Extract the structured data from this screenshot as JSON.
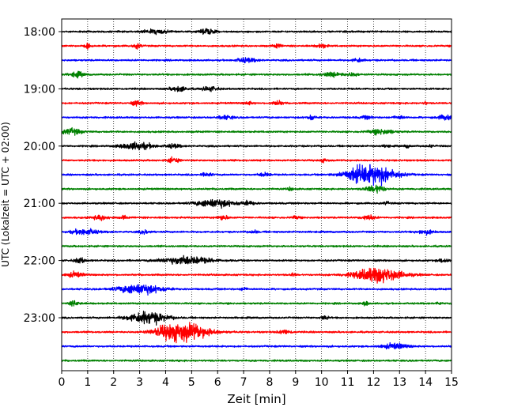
{
  "chart_data": {
    "type": "line",
    "title": "",
    "xlabel": "Zeit  [min]",
    "ylabel": "UTC (Lokalzeit = UTC + 02:00)",
    "xlim": [
      0,
      15
    ],
    "x_ticks": [
      "0",
      "1",
      "2",
      "3",
      "4",
      "5",
      "6",
      "7",
      "8",
      "9",
      "10",
      "11",
      "12",
      "13",
      "14",
      "15"
    ],
    "y_ticks": [
      {
        "label": "18:00",
        "trace": 0
      },
      {
        "label": "19:00",
        "trace": 4
      },
      {
        "label": "20:00",
        "trace": 8
      },
      {
        "label": "21:00",
        "trace": 12
      },
      {
        "label": "22:00",
        "trace": 16
      },
      {
        "label": "23:00",
        "trace": 20
      }
    ],
    "grid": "vertical dotted",
    "colors": [
      "#000000",
      "#ff0000",
      "#0000ff",
      "#008000"
    ],
    "traces": [
      {
        "start": "18:00",
        "color": "#000000",
        "events": [
          [
            3.6,
            0.8,
            0.45
          ],
          [
            5.6,
            1.2,
            0.25
          ]
        ]
      },
      {
        "start": "18:15",
        "color": "#ff0000",
        "events": [
          [
            1.0,
            0.9,
            0.1
          ],
          [
            2.9,
            0.9,
            0.15
          ],
          [
            8.3,
            0.7,
            0.15
          ],
          [
            10.0,
            0.8,
            0.2
          ]
        ]
      },
      {
        "start": "18:30",
        "color": "#0000ff",
        "events": [
          [
            7.1,
            0.9,
            0.35
          ],
          [
            11.4,
            0.8,
            0.2
          ]
        ]
      },
      {
        "start": "18:45",
        "color": "#008000",
        "events": [
          [
            0.6,
            1.0,
            0.25
          ],
          [
            10.4,
            0.8,
            0.4
          ],
          [
            11.2,
            0.7,
            0.2
          ]
        ]
      },
      {
        "start": "19:00",
        "color": "#000000",
        "events": [
          [
            4.5,
            1.0,
            0.3
          ],
          [
            5.7,
            0.8,
            0.3
          ]
        ]
      },
      {
        "start": "19:15",
        "color": "#ff0000",
        "events": [
          [
            2.9,
            0.9,
            0.2
          ],
          [
            7.2,
            0.6,
            0.15
          ],
          [
            8.3,
            0.8,
            0.2
          ],
          [
            14.0,
            0.5,
            0.08
          ]
        ]
      },
      {
        "start": "19:30",
        "color": "#0000ff",
        "events": [
          [
            6.3,
            0.7,
            0.3
          ],
          [
            9.6,
            0.8,
            0.15
          ],
          [
            11.7,
            0.6,
            0.2
          ],
          [
            13.0,
            0.6,
            0.2
          ],
          [
            14.8,
            1.0,
            0.3
          ]
        ]
      },
      {
        "start": "19:45",
        "color": "#008000",
        "events": [
          [
            0.4,
            1.2,
            0.35
          ],
          [
            12.3,
            1.0,
            0.45
          ]
        ]
      },
      {
        "start": "20:00",
        "color": "#000000",
        "events": [
          [
            2.9,
            1.4,
            0.6
          ],
          [
            4.3,
            0.8,
            0.25
          ],
          [
            12.5,
            0.6,
            0.1
          ],
          [
            13.3,
            0.6,
            0.1
          ],
          [
            14.2,
            0.6,
            0.08
          ]
        ]
      },
      {
        "start": "20:15",
        "color": "#ff0000",
        "events": [
          [
            4.3,
            1.0,
            0.2
          ],
          [
            10.1,
            0.6,
            0.15
          ]
        ]
      },
      {
        "start": "20:30",
        "color": "#0000ff",
        "events": [
          [
            5.6,
            0.7,
            0.2
          ],
          [
            7.8,
            0.8,
            0.2
          ],
          [
            11.3,
            1.2,
            0.3
          ],
          [
            11.9,
            3.5,
            0.9
          ],
          [
            12.3,
            0.9,
            0.4
          ]
        ]
      },
      {
        "start": "20:45",
        "color": "#008000",
        "events": [
          [
            8.8,
            0.6,
            0.1
          ],
          [
            12.2,
            1.2,
            0.25
          ],
          [
            11.9,
            0.8,
            0.3
          ]
        ]
      },
      {
        "start": "21:00",
        "color": "#000000",
        "events": [
          [
            5.9,
            1.6,
            0.7
          ],
          [
            7.2,
            0.7,
            0.25
          ],
          [
            12.5,
            0.6,
            0.1
          ]
        ]
      },
      {
        "start": "21:15",
        "color": "#ff0000",
        "events": [
          [
            1.5,
            0.9,
            0.3
          ],
          [
            2.4,
            0.7,
            0.1
          ],
          [
            6.2,
            0.9,
            0.2
          ],
          [
            9.0,
            0.6,
            0.15
          ],
          [
            11.8,
            0.9,
            0.25
          ]
        ]
      },
      {
        "start": "21:30",
        "color": "#0000ff",
        "events": [
          [
            0.9,
            1.1,
            0.5
          ],
          [
            3.2,
            0.7,
            0.2
          ],
          [
            7.4,
            0.6,
            0.15
          ],
          [
            14.0,
            0.8,
            0.3
          ]
        ]
      },
      {
        "start": "21:45",
        "color": "#008000",
        "events": []
      },
      {
        "start": "22:00",
        "color": "#000000",
        "events": [
          [
            0.7,
            1.0,
            0.2
          ],
          [
            4.8,
            1.6,
            0.9
          ],
          [
            14.7,
            0.8,
            0.2
          ]
        ]
      },
      {
        "start": "22:15",
        "color": "#ff0000",
        "events": [
          [
            0.5,
            1.0,
            0.3
          ],
          [
            12.2,
            3.0,
            0.9
          ],
          [
            8.9,
            0.6,
            0.1
          ]
        ]
      },
      {
        "start": "22:30",
        "color": "#0000ff",
        "events": [
          [
            3.0,
            2.0,
            0.8
          ],
          [
            7.0,
            0.7,
            0.1
          ]
        ]
      },
      {
        "start": "22:45",
        "color": "#008000",
        "events": [
          [
            0.5,
            0.9,
            0.2
          ],
          [
            11.7,
            0.9,
            0.1
          ],
          [
            14.5,
            0.6,
            0.1
          ]
        ]
      },
      {
        "start": "23:00",
        "color": "#000000",
        "events": [
          [
            3.3,
            2.5,
            0.7
          ],
          [
            10.1,
            0.8,
            0.15
          ]
        ]
      },
      {
        "start": "23:15",
        "color": "#ff0000",
        "events": [
          [
            4.8,
            3.5,
            0.9
          ],
          [
            4.0,
            1.3,
            0.5
          ],
          [
            8.6,
            0.8,
            0.25
          ]
        ]
      },
      {
        "start": "23:30",
        "color": "#0000ff",
        "events": [
          [
            12.8,
            1.0,
            0.5
          ]
        ]
      },
      {
        "start": "23:45",
        "color": "#008000",
        "events": []
      }
    ]
  }
}
